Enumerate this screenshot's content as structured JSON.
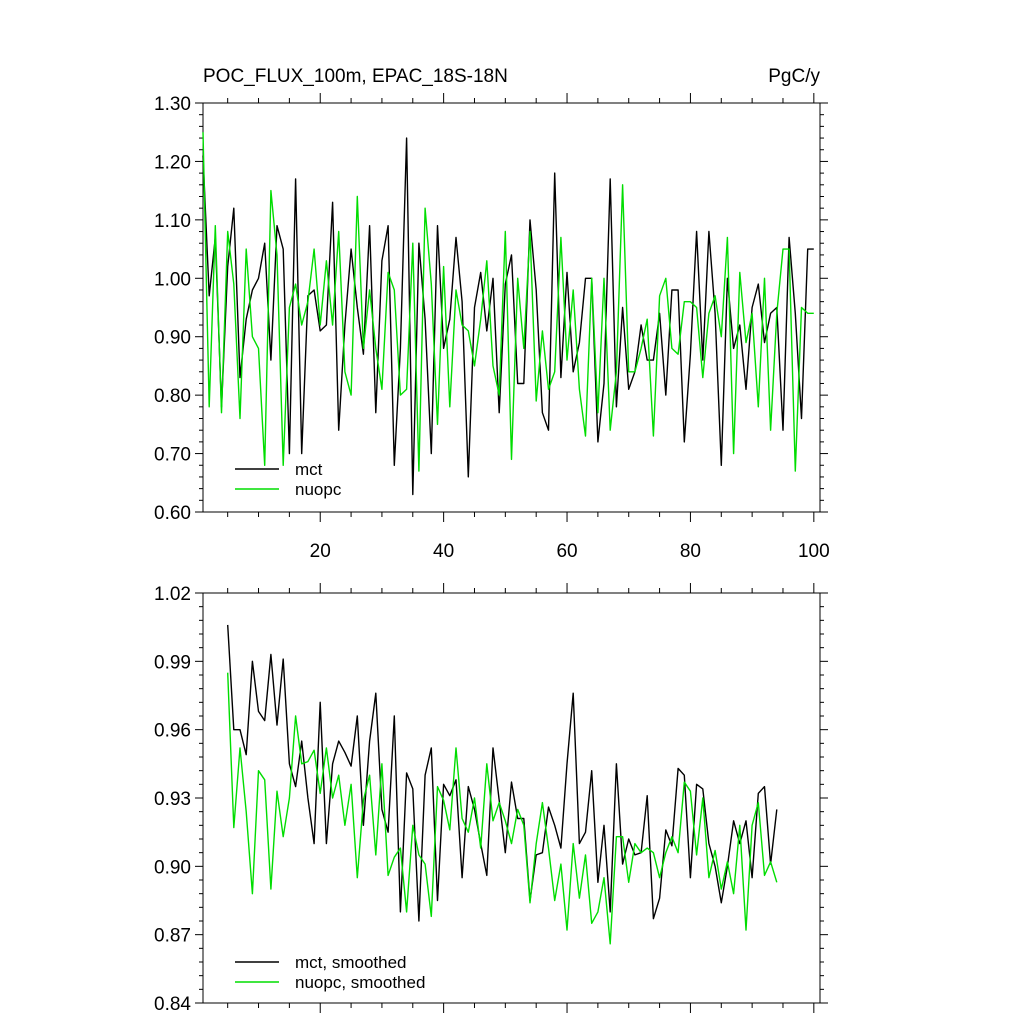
{
  "page": {
    "title_left": "POC_FLUX_100m, EPAC_18S-18N",
    "title_right": "PgC/y"
  },
  "colors": {
    "mct": "#000000",
    "nuopc": "#00dd00"
  },
  "chart_data": [
    {
      "type": "line",
      "title": "POC_FLUX_100m, EPAC_18S-18N",
      "units": "PgC/y",
      "xlim": [
        1,
        101
      ],
      "ylim": [
        0.6,
        1.3
      ],
      "x_ticks": [
        20,
        40,
        60,
        80,
        100
      ],
      "y_ticks": [
        0.6,
        0.7,
        0.8,
        0.9,
        1.0,
        1.1,
        1.2,
        1.3
      ],
      "y_tick_labels": [
        "0.60",
        "0.70",
        "0.80",
        "0.90",
        "1.00",
        "1.10",
        "1.20",
        "1.30"
      ],
      "legend_position": "bottom-left",
      "grid": false,
      "x": [
        1,
        2,
        3,
        4,
        5,
        6,
        7,
        8,
        9,
        10,
        11,
        12,
        13,
        14,
        15,
        16,
        17,
        18,
        19,
        20,
        21,
        22,
        23,
        24,
        25,
        26,
        27,
        28,
        29,
        30,
        31,
        32,
        33,
        34,
        35,
        36,
        37,
        38,
        39,
        40,
        41,
        42,
        43,
        44,
        45,
        46,
        47,
        48,
        49,
        50,
        51,
        52,
        53,
        54,
        55,
        56,
        57,
        58,
        59,
        60,
        61,
        62,
        63,
        64,
        65,
        66,
        67,
        68,
        69,
        70,
        71,
        72,
        73,
        74,
        75,
        76,
        77,
        78,
        79,
        80,
        81,
        82,
        83,
        84,
        85,
        86,
        87,
        88,
        89,
        90,
        91,
        92,
        93,
        94,
        95,
        96,
        97,
        98,
        99,
        100
      ],
      "series": [
        {
          "name": "mct",
          "color": "#000000",
          "values": [
            1.21,
            0.97,
            1.07,
            0.78,
            1.02,
            1.12,
            0.83,
            0.93,
            0.98,
            1.0,
            1.06,
            0.86,
            1.09,
            1.05,
            0.7,
            1.17,
            0.7,
            0.97,
            0.98,
            0.91,
            0.92,
            1.13,
            0.74,
            0.92,
            1.05,
            0.95,
            0.87,
            1.09,
            0.77,
            1.03,
            1.09,
            0.68,
            0.88,
            1.24,
            0.63,
            1.06,
            0.93,
            0.7,
            1.09,
            0.88,
            0.93,
            1.07,
            0.96,
            0.66,
            0.95,
            1.01,
            0.91,
            1.0,
            0.77,
            0.99,
            1.04,
            0.82,
            0.82,
            1.1,
            0.98,
            0.77,
            0.74,
            1.18,
            0.83,
            1.01,
            0.84,
            0.89,
            1.0,
            1.0,
            0.72,
            0.82,
            1.17,
            0.78,
            0.95,
            0.81,
            0.84,
            0.92,
            0.86,
            0.86,
            0.94,
            0.8,
            0.98,
            0.98,
            0.72,
            0.87,
            1.08,
            0.86,
            1.08,
            0.94,
            0.68,
            1.0,
            0.88,
            0.92,
            0.81,
            0.95,
            0.99,
            0.89,
            0.94,
            0.95,
            0.74,
            1.07,
            0.94,
            0.76,
            1.05,
            1.05
          ]
        },
        {
          "name": "nuopc",
          "color": "#00dd00",
          "values": [
            1.25,
            0.78,
            1.09,
            0.77,
            1.08,
            0.99,
            0.76,
            1.05,
            0.9,
            0.88,
            0.68,
            1.15,
            1.04,
            0.68,
            0.95,
            0.99,
            0.92,
            0.96,
            1.05,
            0.92,
            1.03,
            0.92,
            1.08,
            0.84,
            0.8,
            1.14,
            0.88,
            0.98,
            0.88,
            0.81,
            1.01,
            0.98,
            0.8,
            0.81,
            1.06,
            0.67,
            1.12,
            0.99,
            0.75,
            1.02,
            0.78,
            0.98,
            0.92,
            0.91,
            0.85,
            0.93,
            1.03,
            0.85,
            0.8,
            1.08,
            0.69,
            1.0,
            0.88,
            1.08,
            0.79,
            0.91,
            0.81,
            0.84,
            1.07,
            0.86,
            0.98,
            0.81,
            0.73,
            1.0,
            0.77,
            1.0,
            0.74,
            0.84,
            1.16,
            0.84,
            0.84,
            0.88,
            0.93,
            0.73,
            0.97,
            1.0,
            0.88,
            0.87,
            0.96,
            0.96,
            0.95,
            0.83,
            0.94,
            0.97,
            0.9,
            1.07,
            0.7,
            1.01,
            0.89,
            0.94,
            0.78,
            1.0,
            0.74,
            0.94,
            1.05,
            1.05,
            0.67,
            0.95,
            0.94,
            0.94
          ]
        }
      ]
    },
    {
      "type": "line",
      "xlim": [
        1,
        101
      ],
      "ylim": [
        0.84,
        1.02
      ],
      "y_ticks": [
        0.84,
        0.87,
        0.9,
        0.93,
        0.96,
        0.99,
        1.02
      ],
      "y_tick_labels": [
        "0.84",
        "0.87",
        "0.90",
        "0.93",
        "0.96",
        "0.99",
        "1.02"
      ],
      "legend_position": "bottom-left",
      "grid": false,
      "x": [
        5,
        6,
        7,
        8,
        9,
        10,
        11,
        12,
        13,
        14,
        15,
        16,
        17,
        18,
        19,
        20,
        21,
        22,
        23,
        24,
        25,
        26,
        27,
        28,
        29,
        30,
        31,
        32,
        33,
        34,
        35,
        36,
        37,
        38,
        39,
        40,
        41,
        42,
        43,
        44,
        45,
        46,
        47,
        48,
        49,
        50,
        51,
        52,
        53,
        54,
        55,
        56,
        57,
        58,
        59,
        60,
        61,
        62,
        63,
        64,
        65,
        66,
        67,
        68,
        69,
        70,
        71,
        72,
        73,
        74,
        75,
        76,
        77,
        78,
        79,
        80,
        81,
        82,
        83,
        84,
        85,
        86,
        87,
        88,
        89,
        90,
        91,
        92,
        93,
        94,
        95,
        96,
        97,
        98
      ],
      "series": [
        {
          "name": "mct, smoothed",
          "color": "#000000",
          "values": [
            1.006,
            0.96,
            0.96,
            0.949,
            0.99,
            0.968,
            0.964,
            0.993,
            0.962,
            0.991,
            0.945,
            0.935,
            0.955,
            0.93,
            0.91,
            0.972,
            0.91,
            0.945,
            0.955,
            0.95,
            0.944,
            0.966,
            0.918,
            0.955,
            0.976,
            0.925,
            0.915,
            0.966,
            0.88,
            0.941,
            0.934,
            0.876,
            0.94,
            0.952,
            0.885,
            0.936,
            0.931,
            0.938,
            0.895,
            0.935,
            0.925,
            0.91,
            0.896,
            0.952,
            0.929,
            0.906,
            0.937,
            0.921,
            0.921,
            0.885,
            0.905,
            0.906,
            0.926,
            0.918,
            0.908,
            0.945,
            0.976,
            0.91,
            0.915,
            0.942,
            0.893,
            0.918,
            0.88,
            0.945,
            0.901,
            0.912,
            0.905,
            0.906,
            0.931,
            0.877,
            0.886,
            0.916,
            0.909,
            0.943,
            0.94,
            0.895,
            0.936,
            0.934,
            0.91,
            0.9,
            0.884,
            0.9,
            0.92,
            0.91,
            0.92,
            0.895,
            0.932,
            0.935,
            0.901,
            0.925,
            null,
            null,
            null,
            null
          ]
        },
        {
          "name": "nuopc, smoothed",
          "color": "#00dd00",
          "values": [
            0.985,
            0.917,
            0.952,
            0.924,
            0.888,
            0.942,
            0.938,
            0.89,
            0.933,
            0.913,
            0.93,
            0.966,
            0.945,
            0.946,
            0.951,
            0.932,
            0.952,
            0.93,
            0.94,
            0.918,
            0.936,
            0.895,
            0.929,
            0.94,
            0.905,
            0.945,
            0.896,
            0.904,
            0.908,
            0.88,
            0.918,
            0.905,
            0.901,
            0.878,
            0.935,
            0.929,
            0.916,
            0.952,
            0.921,
            0.915,
            0.93,
            0.908,
            0.945,
            0.92,
            0.928,
            0.92,
            0.91,
            0.925,
            0.918,
            0.884,
            0.91,
            0.928,
            0.908,
            0.885,
            0.901,
            0.872,
            0.91,
            0.886,
            0.905,
            0.875,
            0.88,
            0.895,
            0.866,
            0.913,
            0.913,
            0.893,
            0.91,
            0.906,
            0.908,
            0.906,
            0.895,
            0.906,
            0.913,
            0.906,
            0.937,
            0.933,
            0.905,
            0.93,
            0.895,
            0.907,
            0.89,
            0.902,
            0.888,
            0.918,
            0.872,
            0.918,
            0.928,
            0.896,
            0.902,
            0.893,
            null,
            null,
            null,
            null
          ]
        }
      ]
    }
  ]
}
